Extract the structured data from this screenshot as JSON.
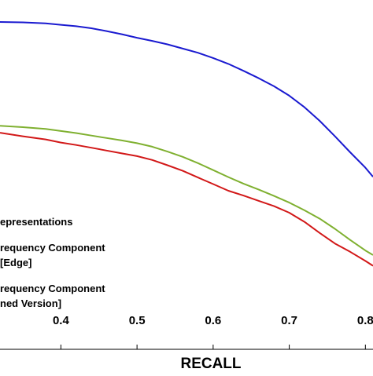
{
  "chart_data": {
    "type": "line",
    "xlabel": "RECALL",
    "xlim": [
      0.32,
      0.81
    ],
    "ylim": [
      0,
      1
    ],
    "x_ticks": [
      0.4,
      0.5,
      0.6,
      0.7,
      0.8
    ],
    "x_tick_labels": [
      "0.4",
      "0.5",
      "0.6",
      "0.7",
      "0.8"
    ],
    "grid": false,
    "legend_position": "lower-left",
    "series": [
      {
        "color": "#1a1ad0",
        "x": [
          0.32,
          0.35,
          0.38,
          0.4,
          0.42,
          0.44,
          0.46,
          0.48,
          0.5,
          0.52,
          0.54,
          0.56,
          0.58,
          0.6,
          0.62,
          0.64,
          0.66,
          0.68,
          0.7,
          0.72,
          0.74,
          0.76,
          0.78,
          0.8,
          0.81
        ],
        "y": [
          0.937,
          0.936,
          0.933,
          0.929,
          0.925,
          0.919,
          0.911,
          0.902,
          0.892,
          0.883,
          0.873,
          0.861,
          0.849,
          0.834,
          0.817,
          0.797,
          0.776,
          0.753,
          0.726,
          0.693,
          0.654,
          0.61,
          0.564,
          0.52,
          0.494
        ]
      },
      {
        "color": "#7fb030",
        "x": [
          0.32,
          0.35,
          0.38,
          0.4,
          0.42,
          0.44,
          0.46,
          0.48,
          0.5,
          0.52,
          0.54,
          0.56,
          0.58,
          0.6,
          0.62,
          0.64,
          0.66,
          0.68,
          0.7,
          0.72,
          0.74,
          0.76,
          0.78,
          0.8,
          0.81
        ],
        "y": [
          0.64,
          0.636,
          0.631,
          0.625,
          0.619,
          0.612,
          0.605,
          0.598,
          0.59,
          0.58,
          0.566,
          0.551,
          0.533,
          0.513,
          0.493,
          0.474,
          0.457,
          0.439,
          0.42,
          0.398,
          0.374,
          0.345,
          0.313,
          0.283,
          0.27
        ]
      },
      {
        "color": "#d21818",
        "x": [
          0.32,
          0.35,
          0.38,
          0.4,
          0.42,
          0.44,
          0.46,
          0.48,
          0.5,
          0.52,
          0.54,
          0.56,
          0.58,
          0.6,
          0.62,
          0.64,
          0.66,
          0.68,
          0.7,
          0.72,
          0.74,
          0.76,
          0.78,
          0.8,
          0.81
        ],
        "y": [
          0.62,
          0.61,
          0.601,
          0.592,
          0.585,
          0.577,
          0.569,
          0.561,
          0.553,
          0.542,
          0.527,
          0.511,
          0.492,
          0.473,
          0.454,
          0.44,
          0.425,
          0.41,
          0.391,
          0.365,
          0.333,
          0.303,
          0.279,
          0.253,
          0.239
        ]
      }
    ],
    "legend_lines": [
      "epresentations",
      "requency Component",
      "[Edge]",
      "requency Component",
      "ned Version]"
    ]
  }
}
